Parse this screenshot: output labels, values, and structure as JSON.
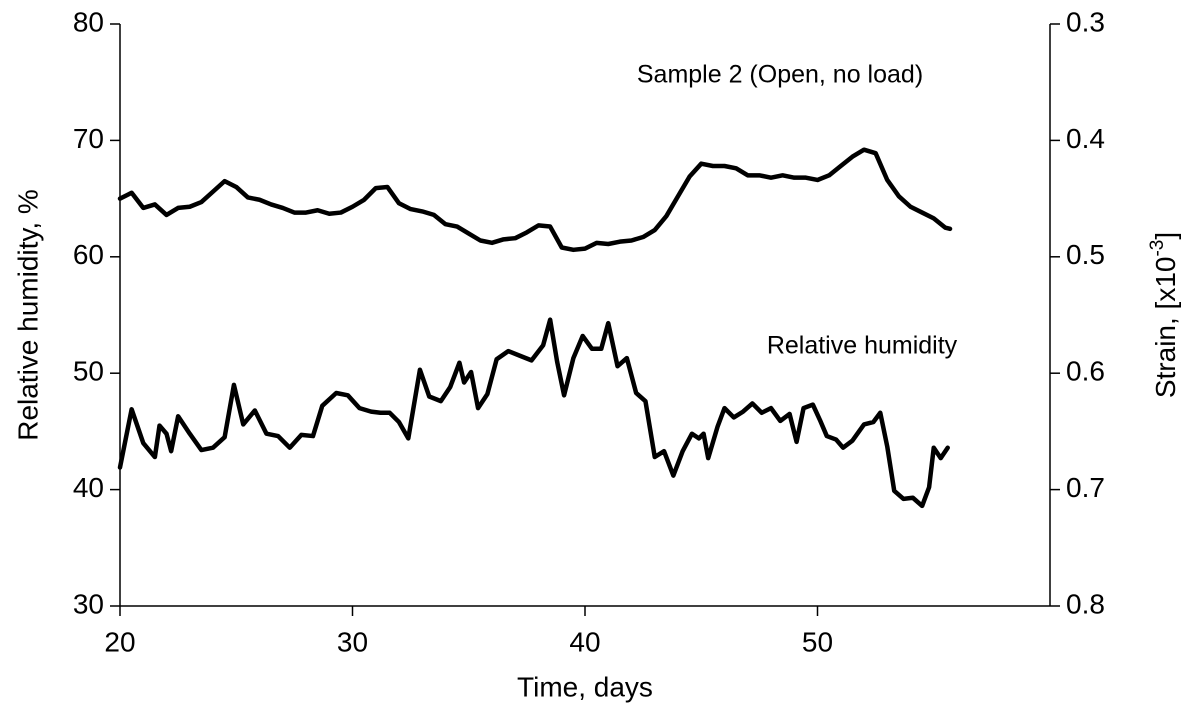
{
  "chart_data": {
    "type": "line",
    "xlabel": "Time, days",
    "ylabel": "Relative humidity, %",
    "y2label": [
      "Strain, [x10",
      "-3",
      "]"
    ],
    "annotations": [
      "Sample 2 (Open, no load)",
      "Relative humidity"
    ],
    "xlim": [
      20,
      60
    ],
    "xticks": [
      20,
      30,
      40,
      50
    ],
    "ylim": [
      30,
      80
    ],
    "yticks": [
      30,
      40,
      50,
      60,
      70,
      80
    ],
    "y2lim": [
      0.8,
      0.3
    ],
    "y2ticks": [
      0.3,
      0.4,
      0.5,
      0.6,
      0.7,
      0.8
    ],
    "series": [
      {
        "color": "#000000",
        "axis": "y2",
        "x": [
          20,
          20.5,
          21,
          21.5,
          22,
          22.5,
          23,
          23.5,
          24,
          24.5,
          25,
          25.5,
          26,
          26.5,
          27,
          27.5,
          28,
          28.5,
          29,
          29.5,
          30,
          30.5,
          31,
          31.5,
          32,
          32.5,
          33,
          33.5,
          34,
          34.5,
          35,
          35.5,
          36,
          36.5,
          37,
          37.5,
          38,
          38.5,
          39,
          39.5,
          40,
          40.5,
          41,
          41.5,
          42,
          42.5,
          43,
          43.5,
          44,
          44.5,
          45,
          45.5,
          46,
          46.5,
          47,
          47.5,
          48,
          48.5,
          49,
          49.5,
          50,
          50.5,
          51,
          51.5,
          52,
          52.5,
          53,
          53.5,
          54,
          54.5,
          55,
          55.5,
          55.7
        ],
        "values": [
          0.45,
          0.445,
          0.458,
          0.455,
          0.464,
          0.458,
          0.457,
          0.453,
          0.444,
          0.435,
          0.44,
          0.449,
          0.451,
          0.455,
          0.458,
          0.462,
          0.462,
          0.46,
          0.463,
          0.462,
          0.457,
          0.451,
          0.441,
          0.44,
          0.454,
          0.459,
          0.461,
          0.464,
          0.472,
          0.474,
          0.48,
          0.486,
          0.488,
          0.485,
          0.484,
          0.479,
          0.473,
          0.474,
          0.492,
          0.494,
          0.493,
          0.488,
          0.489,
          0.487,
          0.486,
          0.483,
          0.477,
          0.465,
          0.448,
          0.431,
          0.42,
          0.422,
          0.422,
          0.424,
          0.43,
          0.43,
          0.432,
          0.43,
          0.432,
          0.432,
          0.434,
          0.43,
          0.422,
          0.414,
          0.408,
          0.411,
          0.434,
          0.448,
          0.457,
          0.462,
          0.467,
          0.475,
          0.476
        ]
      },
      {
        "color": "#000000",
        "x": [
          20,
          20.5,
          21,
          21.5,
          21.7,
          22,
          22.2,
          22.5,
          23,
          23.5,
          24,
          24.5,
          24.9,
          25.3,
          25.8,
          26.3,
          26.8,
          27.3,
          27.8,
          28.3,
          28.7,
          29.3,
          29.8,
          30.3,
          30.8,
          31.2,
          31.6,
          32.0,
          32.4,
          32.9,
          33.3,
          33.8,
          34.2,
          34.6,
          34.8,
          35.1,
          35.4,
          35.8,
          36.2,
          36.7,
          37.2,
          37.7,
          38.2,
          38.5,
          38.8,
          39.1,
          39.5,
          39.9,
          40.3,
          40.7,
          41.0,
          41.4,
          41.8,
          42.2,
          42.6,
          43.0,
          43.4,
          43.8,
          44.2,
          44.6,
          44.9,
          45.1,
          45.3,
          45.7,
          46.0,
          46.4,
          46.8,
          47.2,
          47.6,
          48.0,
          48.4,
          48.8,
          49.1,
          49.4,
          49.8,
          50.1,
          50.4,
          50.8,
          51.1,
          51.5,
          52.0,
          52.4,
          52.7,
          53.0,
          53.3,
          53.7,
          54.1,
          54.5,
          54.8,
          55.0,
          55.3,
          55.6
        ],
        "values": [
          41.9,
          46.9,
          44.0,
          42.8,
          45.5,
          44.8,
          43.3,
          46.3,
          44.8,
          43.4,
          43.6,
          44.5,
          49.0,
          45.6,
          46.8,
          44.8,
          44.6,
          43.6,
          44.7,
          44.6,
          47.2,
          48.3,
          48.1,
          47.0,
          46.7,
          46.6,
          46.6,
          45.8,
          44.4,
          50.3,
          48.0,
          47.6,
          48.8,
          50.9,
          49.2,
          50.1,
          47.0,
          48.2,
          51.2,
          51.9,
          51.5,
          51.1,
          52.4,
          54.6,
          51.0,
          48.1,
          51.3,
          53.2,
          52.1,
          52.1,
          54.3,
          50.6,
          51.3,
          48.3,
          47.6,
          42.8,
          43.3,
          41.2,
          43.3,
          44.8,
          44.4,
          44.8,
          42.7,
          45.4,
          47.0,
          46.2,
          46.7,
          47.4,
          46.6,
          47.0,
          45.9,
          46.5,
          44.1,
          47.0,
          47.3,
          46.0,
          44.6,
          44.3,
          43.6,
          44.2,
          45.6,
          45.8,
          46.6,
          43.7,
          39.9,
          39.2,
          39.3,
          38.6,
          40.2,
          43.6,
          42.7,
          43.6
        ]
      }
    ]
  }
}
